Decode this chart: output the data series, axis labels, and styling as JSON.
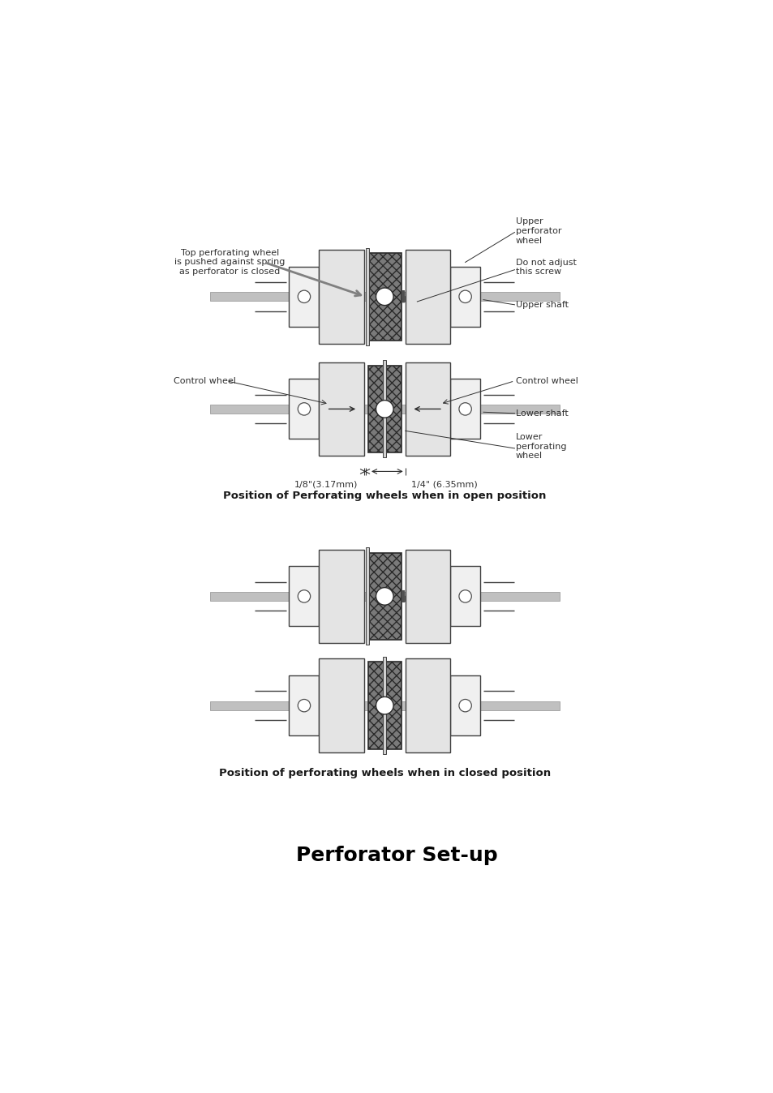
{
  "bg_color": "#ffffff",
  "title": "Perforator Set-up",
  "title_fontsize": 18,
  "caption1": "Position of Perforating wheels when in open position",
  "caption2": "Position of perforating wheels when in closed position",
  "caption_fontsize": 9.5,
  "label_fontsize": 8,
  "dim_label_left": "1/8\"(3.17mm)",
  "dim_label_right": "1/4\" (6.35mm)"
}
